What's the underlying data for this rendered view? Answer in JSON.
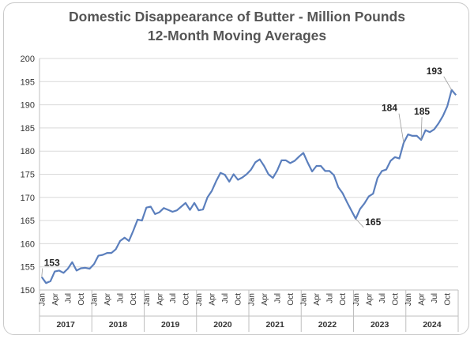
{
  "chart_data": {
    "type": "line",
    "title": "Domestic Disappearance of Butter - Million Pounds",
    "subtitle": "12-Month Moving Averages",
    "xlabel": "",
    "ylabel": "",
    "ylim": [
      150,
      200
    ],
    "yticks": [
      "150",
      "155",
      "160",
      "165",
      "170",
      "175",
      "180",
      "185",
      "190",
      "195",
      "200"
    ],
    "grid": true,
    "legend": "none",
    "line_color": "#5b7fbd",
    "years": [
      "2017",
      "2018",
      "2019",
      "2020",
      "2021",
      "2022",
      "2023",
      "2024"
    ],
    "month_labels": [
      "Jan",
      "Apr",
      "Jul",
      "Oct"
    ],
    "series": [
      {
        "values": [
          152.8,
          151.5,
          151.9,
          154.0,
          154.2,
          153.7,
          154.6,
          156.0,
          154.2,
          154.7,
          154.8,
          154.6,
          155.6,
          157.4,
          157.6,
          158.0,
          158.0,
          158.8,
          160.6,
          161.3,
          160.6,
          162.8,
          165.2,
          165.0,
          167.8,
          168.0,
          166.4,
          166.8,
          167.7,
          167.3,
          166.9,
          167.2,
          168.0,
          168.8,
          167.3,
          168.8,
          167.2,
          167.4,
          170.0,
          171.4,
          173.5,
          175.3,
          174.9,
          173.4,
          175.0,
          173.8,
          174.3,
          175.0,
          176.0,
          177.6,
          178.2,
          176.8,
          175.0,
          174.2,
          175.8,
          178.0,
          178.0,
          177.4,
          177.9,
          178.8,
          179.6,
          177.5,
          175.6,
          176.8,
          176.8,
          175.7,
          175.7,
          174.8,
          172.2,
          170.9,
          169.0,
          167.2,
          165.4,
          167.5,
          168.7,
          170.2,
          170.8,
          174.2,
          175.7,
          176.0,
          177.9,
          178.7,
          178.4,
          181.8,
          183.6,
          183.3,
          183.3,
          182.4,
          184.5,
          184.1,
          184.7,
          186.0,
          187.6,
          189.7,
          193.2,
          192.1
        ]
      }
    ],
    "annotations": [
      "153",
      "165",
      "184",
      "185",
      "193"
    ]
  }
}
